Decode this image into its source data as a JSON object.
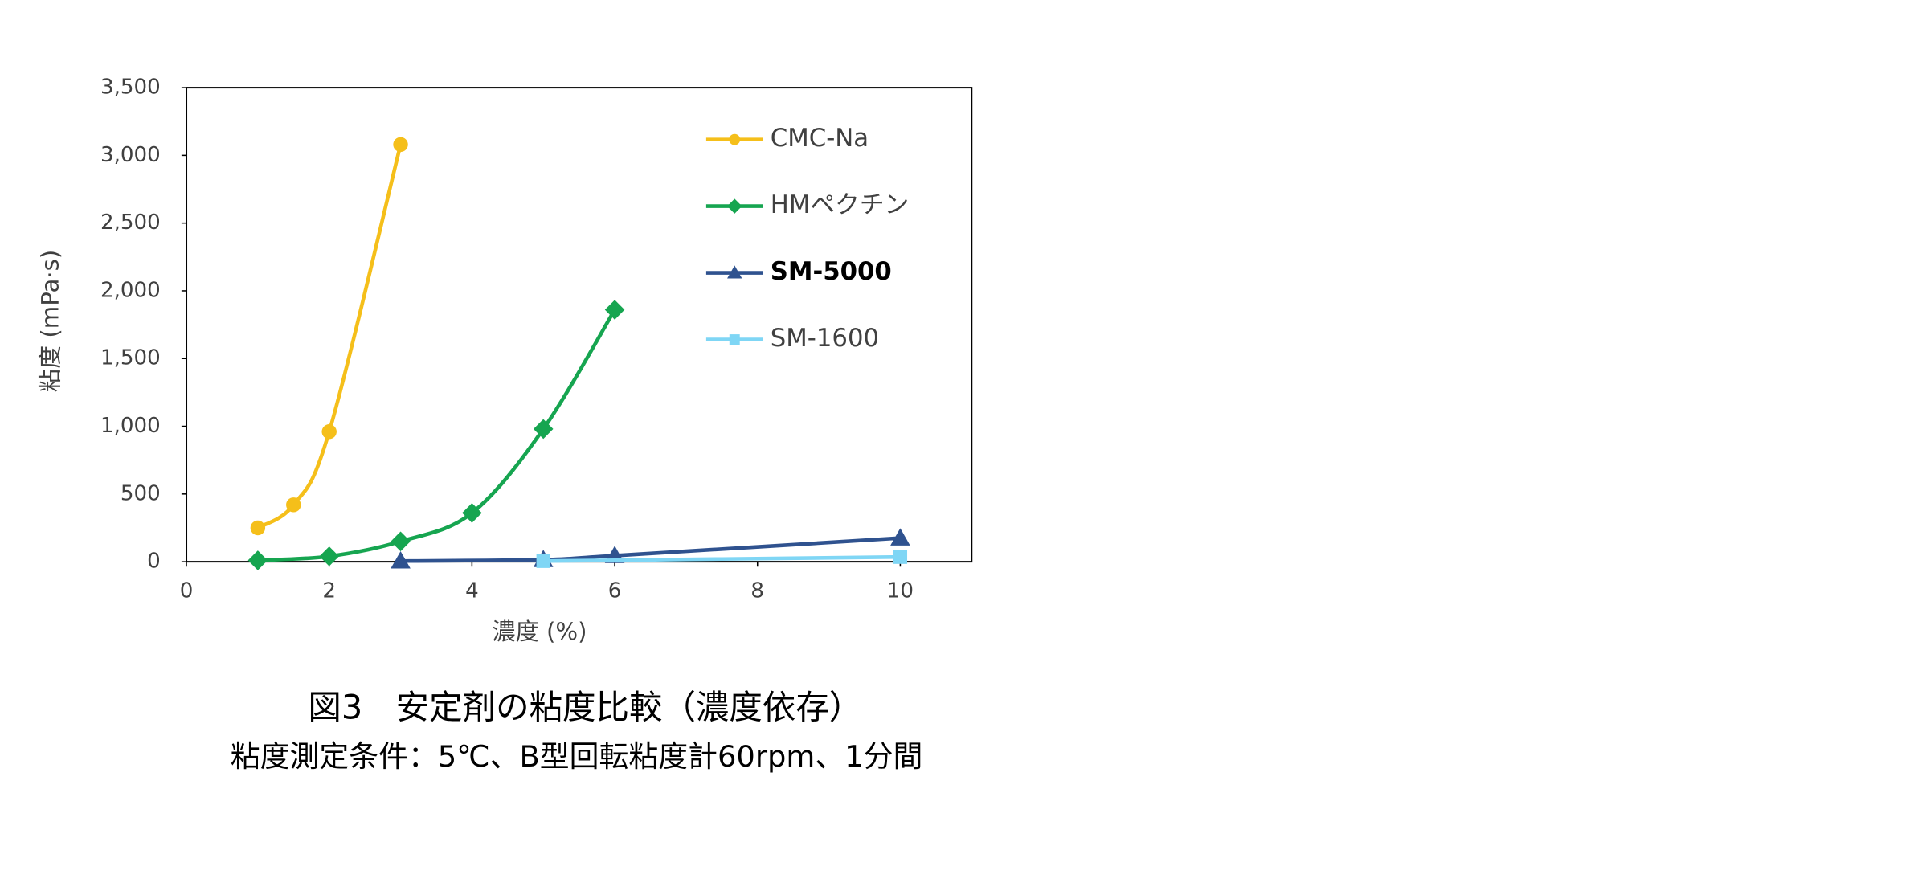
{
  "chart_data": {
    "type": "line",
    "title": "図3　安定剤の粘度比較（濃度依存）",
    "subtitle": "粘度測定条件：5℃、B型回転粘度計60rpm、1分間",
    "x_label": "濃度 (%)",
    "y_label": "粘度 (mPa·s)",
    "xlim": [
      0,
      11
    ],
    "xticks": [
      0,
      2,
      4,
      6,
      8,
      10
    ],
    "ylim": [
      0,
      3500
    ],
    "yticks": [
      0,
      500,
      {
        "value": 1000,
        "label": "1,000"
      },
      {
        "value": 1500,
        "label": "1,500"
      },
      {
        "value": 2000,
        "label": "2,000"
      },
      {
        "value": 2500,
        "label": "2,500"
      },
      {
        "value": 3000,
        "label": "3,000"
      },
      {
        "value": 3500,
        "label": "3,500"
      }
    ],
    "legend": "top-right",
    "smooth": true,
    "series": [
      {
        "name": "CMC-Na",
        "color": "#f5bf1a",
        "marker": "circle",
        "x": [
          1,
          1.5,
          2,
          3
        ],
        "values": [
          250,
          420,
          960,
          3080
        ]
      },
      {
        "name": "HMペクチン",
        "color": "#16a550",
        "marker": "diamond",
        "x": [
          1,
          2,
          3,
          4,
          5,
          6
        ],
        "values": [
          10,
          40,
          150,
          360,
          980,
          1860
        ]
      },
      {
        "name": "SM-5000",
        "color": "#2f528f",
        "marker": "triangle",
        "bold": true,
        "x": [
          3,
          5,
          6,
          10
        ],
        "values": [
          5,
          15,
          45,
          175
        ]
      },
      {
        "name": "SM-1600",
        "color": "#7fd6f5",
        "marker": "square",
        "x": [
          5,
          10
        ],
        "values": [
          5,
          35
        ]
      }
    ]
  }
}
